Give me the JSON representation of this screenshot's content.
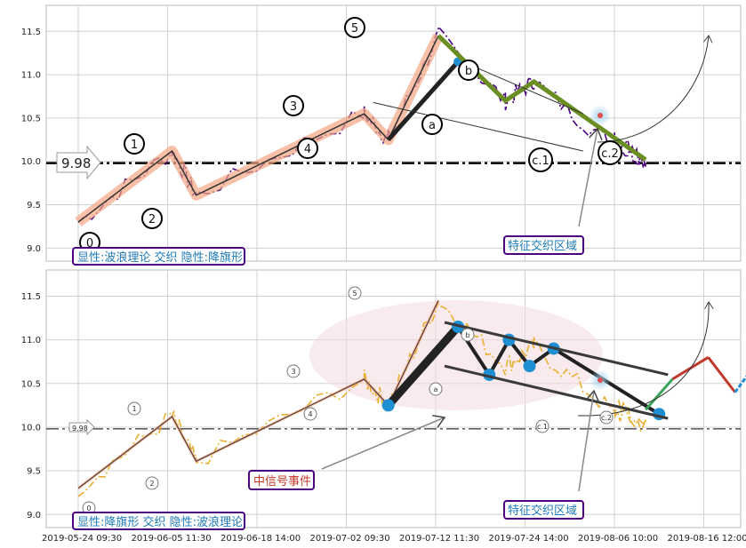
{
  "chart_data": [
    {
      "type": "line",
      "panel": "top",
      "y_ticks": [
        "9.0",
        "9.5",
        "10.0",
        "10.5",
        "11.0",
        "11.5"
      ],
      "ylim": [
        8.85,
        11.8
      ],
      "grid": true,
      "reference_level": {
        "value": 9.98,
        "label": "9.98"
      },
      "wave_points": [
        {
          "label": "0",
          "x": 0,
          "y": 9.3
        },
        {
          "label": "1",
          "x": 1.05,
          "y": 10.12
        },
        {
          "label": "2",
          "x": 1.32,
          "y": 9.61
        },
        {
          "label": "3",
          "x": 3.2,
          "y": 10.55
        },
        {
          "label": "4",
          "x": 3.47,
          "y": 10.25
        },
        {
          "label": "5",
          "x": 4.03,
          "y": 11.45
        },
        {
          "label": "a",
          "x": 4.78,
          "y": 10.7
        },
        {
          "label": "b",
          "x": 5.1,
          "y": 10.92
        },
        {
          "label": "c.1",
          "x": 5.95,
          "y": 10.2
        },
        {
          "label": "c.2",
          "x": 6.35,
          "y": 10.02
        }
      ],
      "annotation_text": "显性:波浪理论 交织 隐性:降旗形",
      "callout": "特征交织区域"
    },
    {
      "type": "line",
      "panel": "bottom",
      "y_ticks": [
        "9.0",
        "9.5",
        "10.0",
        "10.5",
        "11.0",
        "11.5"
      ],
      "ylim": [
        8.85,
        11.8
      ],
      "grid": true,
      "reference_level": {
        "value": 9.98,
        "label": "9.98"
      },
      "wave_points": [
        {
          "label": "0",
          "x": 0,
          "y": 9.3
        },
        {
          "label": "1",
          "x": 1.05,
          "y": 10.12
        },
        {
          "label": "2",
          "x": 1.32,
          "y": 9.61
        },
        {
          "label": "3",
          "x": 3.2,
          "y": 10.55
        },
        {
          "label": "4",
          "x": 3.47,
          "y": 10.25
        },
        {
          "label": "5",
          "x": 4.03,
          "y": 11.45
        },
        {
          "label": "a",
          "x": 4.78,
          "y": 10.7
        },
        {
          "label": "b",
          "x": 5.1,
          "y": 10.92
        },
        {
          "label": "c.1",
          "x": 5.95,
          "y": 10.2
        },
        {
          "label": "c.2",
          "x": 6.35,
          "y": 10.02
        }
      ],
      "annotation_text": "显性:降旗形 交织 隐性:波浪理论",
      "callout": "特征交织区域",
      "event_label": "中信号事件"
    }
  ],
  "x_tick_labels": [
    "2019-05-24 09:30",
    "2019-06-05 11:30",
    "2019-06-18 14:00",
    "2019-07-02 09:30",
    "2019-07-12 11:30",
    "2019-07-24 14:00",
    "2019-08-06 10:00",
    "2019-08-16 12:00"
  ],
  "colors": {
    "top_series": "#4b0082",
    "bottom_series": "#e8b030",
    "wave_highlight": "#f4a582",
    "correction": "#6b8e23",
    "marker": "#1f8fd4",
    "label_text": "#1f7ab8",
    "label_border": "#4b0082",
    "event_text": "#c0392b"
  }
}
